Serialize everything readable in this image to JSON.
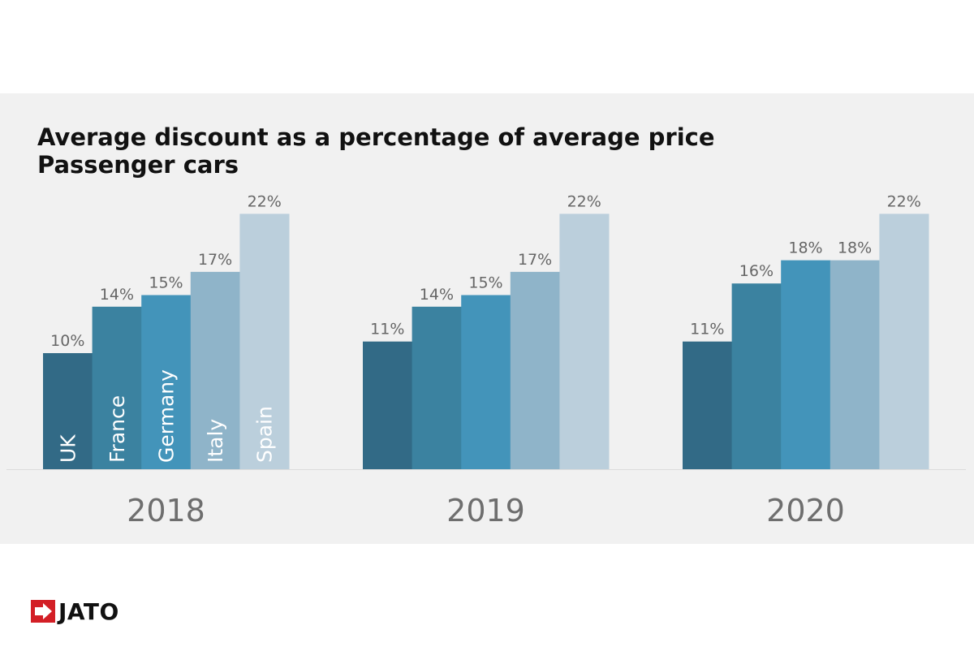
{
  "chart_data": {
    "type": "bar",
    "title": "Average discount as a percentage of average price",
    "subtitle": "Passenger cars",
    "xlabel": "",
    "ylabel": "",
    "ylim": [
      0,
      22
    ],
    "grid": false,
    "legend": "inside-bars",
    "categories": [
      "2018",
      "2019",
      "2020"
    ],
    "series": [
      {
        "name": "UK",
        "color": "#326a86",
        "values": [
          10,
          11,
          11
        ]
      },
      {
        "name": "France",
        "color": "#3b82a0",
        "values": [
          14,
          14,
          16
        ]
      },
      {
        "name": "Germany",
        "color": "#4394ba",
        "values": [
          15,
          15,
          18
        ]
      },
      {
        "name": "Italy",
        "color": "#8fb4c9",
        "values": [
          17,
          17,
          18
        ]
      },
      {
        "name": "Spain",
        "color": "#bbcfdc",
        "values": [
          22,
          22,
          22
        ]
      }
    ],
    "value_suffix": "%"
  },
  "brand": {
    "logo_text": "JATO",
    "accent_color": "#d31f26",
    "icon": "jato-arrow-icon"
  }
}
